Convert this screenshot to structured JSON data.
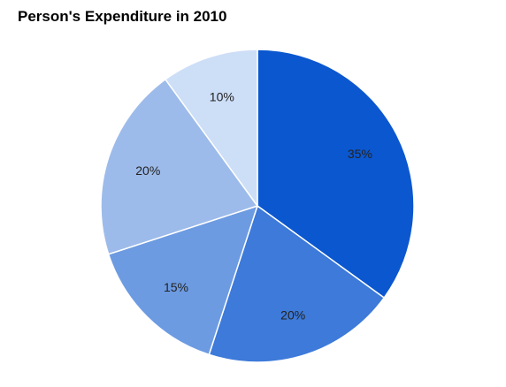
{
  "chart_data": {
    "type": "pie",
    "title": "Person's Expenditure in 2010",
    "values": [
      35,
      20,
      15,
      20,
      10
    ],
    "labels": [
      "35%",
      "20%",
      "15%",
      "20%",
      "10%"
    ],
    "colors": [
      "#0b57cf",
      "#3d7ad9",
      "#6d9be2",
      "#9dbbea",
      "#cddef7"
    ],
    "start_angle": "12 o'clock",
    "direction": "clockwise",
    "legend": "none"
  }
}
